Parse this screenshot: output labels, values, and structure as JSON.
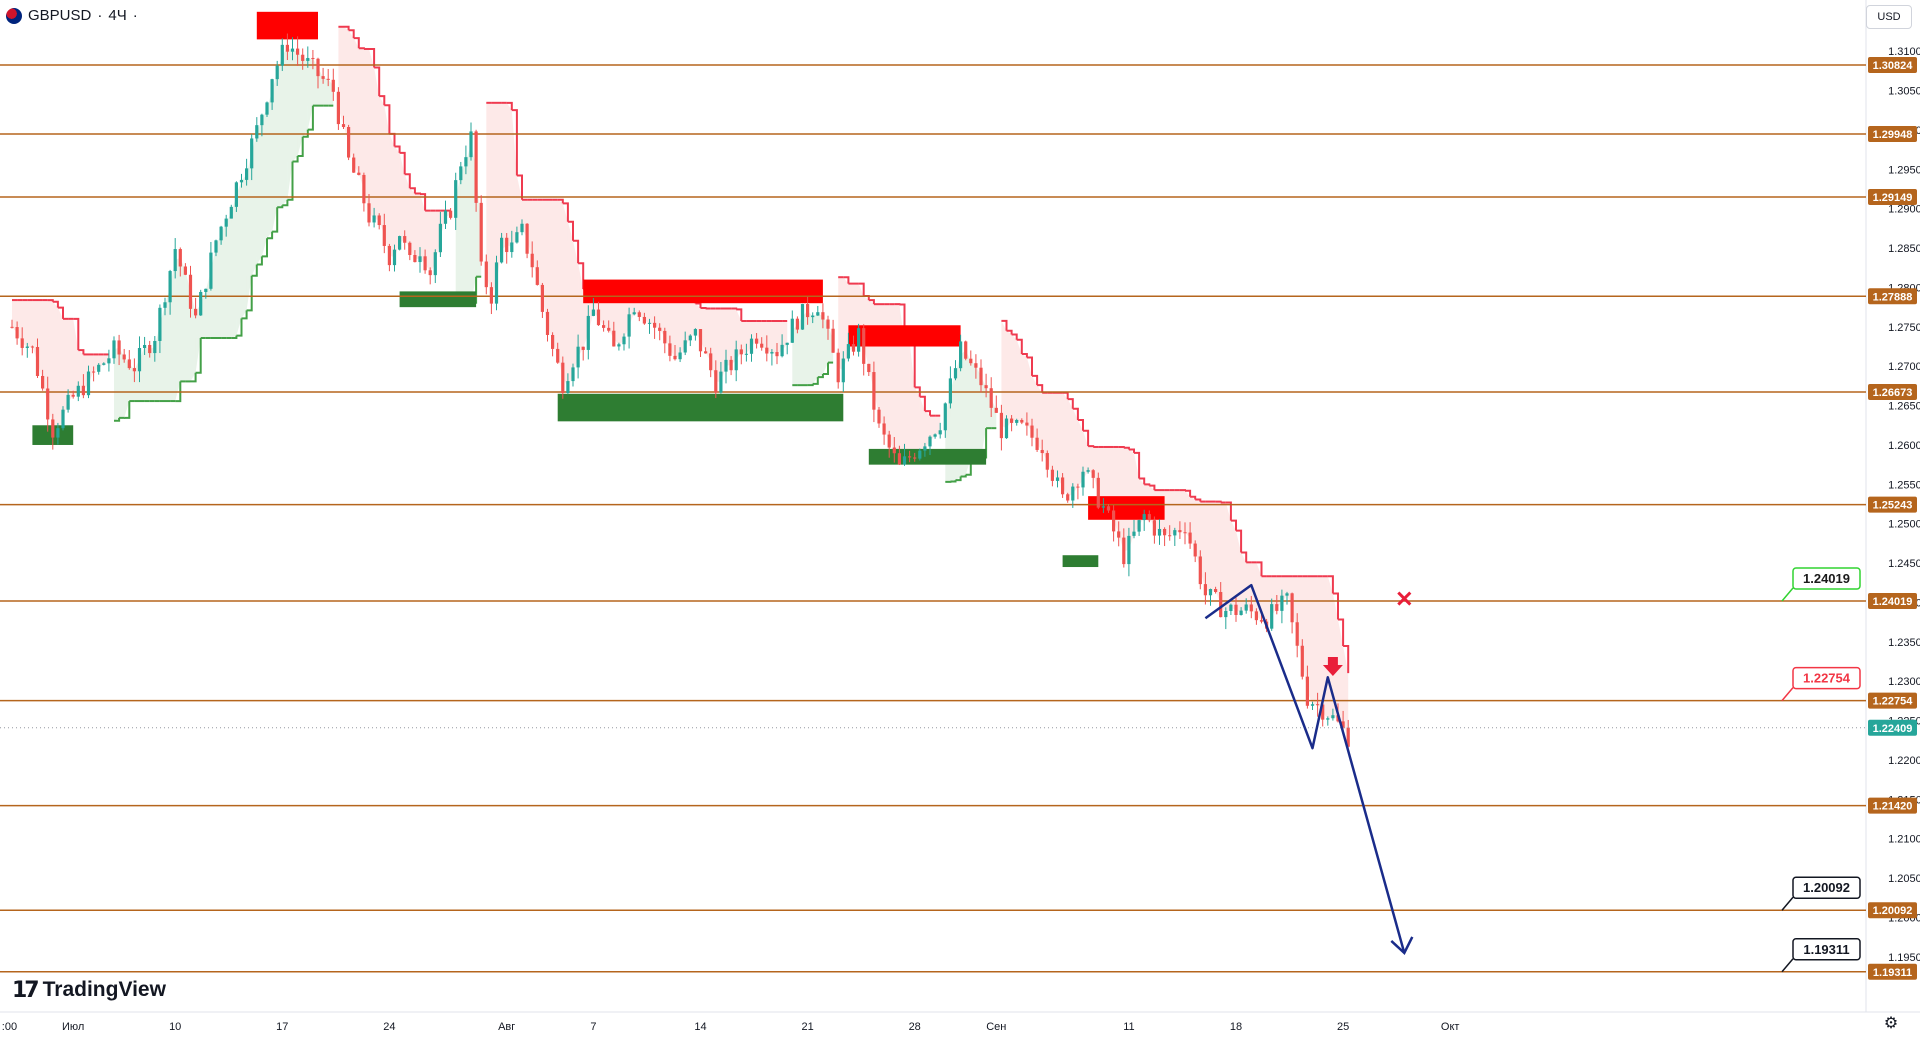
{
  "header": {
    "symbol": "GBPUSD",
    "interval": "4Ч",
    "separator": "·",
    "currency": "USD"
  },
  "brand": {
    "name": "TradingView"
  },
  "icons": {
    "flag": "gbp-usd-flag-icon",
    "settings": "gear-icon",
    "logo": "tradingview-logo-icon"
  },
  "colors": {
    "level_line": "#b5651d",
    "level_label_bg": "#b5651d",
    "bull_candle": "#26a69a",
    "bear_candle": "#ef5350",
    "support_zone": "#2e7d32",
    "resistance_zone": "#ff0000",
    "trail_down": "#ef3a4f",
    "trail_up": "#43a047",
    "projection": "#1a2c8a",
    "price_label_bg": "#26a69a"
  },
  "chart_data": {
    "type": "line",
    "title": "",
    "xlabel": "",
    "ylabel": "",
    "ylim": [
      1.188,
      1.3165
    ],
    "grid": false,
    "x_ticks": [
      {
        "label": ":00",
        "index": -2
      },
      {
        "label": "Июл",
        "index": 12
      },
      {
        "label": "10",
        "index": 32
      },
      {
        "label": "17",
        "index": 53
      },
      {
        "label": "24",
        "index": 74
      },
      {
        "label": "Авг",
        "index": 97
      },
      {
        "label": "7",
        "index": 114
      },
      {
        "label": "14",
        "index": 135
      },
      {
        "label": "21",
        "index": 156
      },
      {
        "label": "28",
        "index": 177
      },
      {
        "label": "Сен",
        "index": 193
      },
      {
        "label": "11",
        "index": 219
      },
      {
        "label": "18",
        "index": 240
      },
      {
        "label": "25",
        "index": 261
      },
      {
        "label": "Окт",
        "index": 282
      }
    ],
    "y_ticks": [
      1.31,
      1.305,
      1.3,
      1.295,
      1.29,
      1.285,
      1.28,
      1.275,
      1.27,
      1.265,
      1.26,
      1.255,
      1.25,
      1.245,
      1.24,
      1.235,
      1.23,
      1.225,
      1.22,
      1.215,
      1.21,
      1.205,
      1.2,
      1.195
    ],
    "y_tick_labels": [
      "1.31000",
      "1.30500",
      "1.30000",
      "1.29500",
      "1.29000",
      "1.28500",
      "1.28000",
      "1.27500",
      "1.27000",
      "1.26500",
      "1.26000",
      "1.25500",
      "1.25000",
      "1.24500",
      "1.24000",
      "1.23500",
      "1.23000",
      "1.22500",
      "1.22000",
      "1.21500",
      "1.21000",
      "1.20500",
      "1.20000",
      "1.19500"
    ],
    "horizontal_levels": [
      {
        "value": 1.30824,
        "label": "1.30824"
      },
      {
        "value": 1.29948,
        "label": "1.29948"
      },
      {
        "value": 1.29149,
        "label": "1.29149"
      },
      {
        "value": 1.27888,
        "label": "1.27888"
      },
      {
        "value": 1.26673,
        "label": "1.26673"
      },
      {
        "value": 1.25243,
        "label": "1.25243"
      },
      {
        "value": 1.24019,
        "label": "1.24019"
      },
      {
        "value": 1.22754,
        "label": "1.22754"
      },
      {
        "value": 1.2142,
        "label": "1.21420"
      },
      {
        "value": 1.20092,
        "label": "1.20092"
      },
      {
        "value": 1.19311,
        "label": "1.19311"
      }
    ],
    "current_price": {
      "value": 1.22409,
      "label": "1.22409"
    },
    "price_path": {
      "x": [
        0,
        4,
        8,
        12,
        16,
        20,
        24,
        28,
        32,
        36,
        40,
        44,
        48,
        51,
        54,
        57,
        60,
        63,
        66,
        68,
        70,
        72,
        74,
        76,
        78,
        80,
        82,
        84,
        86,
        88,
        90,
        92,
        94,
        96,
        98,
        100,
        102,
        104,
        106,
        108,
        110,
        112,
        114,
        118,
        122,
        126,
        130,
        134,
        138,
        142,
        146,
        150,
        154,
        158,
        162,
        166,
        170,
        174,
        178,
        182,
        186,
        190,
        194,
        198,
        202,
        206,
        210,
        214,
        218,
        222,
        226,
        230,
        234,
        238,
        242,
        246,
        250,
        254,
        258,
        262
      ],
      "y": [
        1.275,
        1.272,
        1.262,
        1.266,
        1.269,
        1.272,
        1.27,
        1.274,
        1.285,
        1.276,
        1.286,
        1.293,
        1.3,
        1.307,
        1.311,
        1.309,
        1.307,
        1.305,
        1.296,
        1.293,
        1.289,
        1.287,
        1.284,
        1.287,
        1.283,
        1.285,
        1.282,
        1.287,
        1.29,
        1.296,
        1.299,
        1.282,
        1.279,
        1.286,
        1.285,
        1.287,
        1.283,
        1.277,
        1.272,
        1.268,
        1.271,
        1.273,
        1.277,
        1.272,
        1.278,
        1.275,
        1.271,
        1.274,
        1.268,
        1.271,
        1.274,
        1.272,
        1.276,
        1.278,
        1.269,
        1.274,
        1.262,
        1.257,
        1.26,
        1.263,
        1.272,
        1.268,
        1.262,
        1.262,
        1.26,
        1.253,
        1.257,
        1.252,
        1.246,
        1.251,
        1.248,
        1.25,
        1.241,
        1.239,
        1.239,
        1.238,
        1.24,
        1.228,
        1.226,
        1.223
      ]
    },
    "support_zones": [
      {
        "x0": 4,
        "x1": 12,
        "y0": 1.26,
        "y1": 1.2625
      },
      {
        "x0": 76,
        "x1": 91,
        "y0": 1.2775,
        "y1": 1.2795
      },
      {
        "x0": 107,
        "x1": 163,
        "y0": 1.263,
        "y1": 1.2665
      },
      {
        "x0": 168,
        "x1": 191,
        "y0": 1.2575,
        "y1": 1.2595
      },
      {
        "x0": 206,
        "x1": 213,
        "y0": 1.2445,
        "y1": 1.246
      }
    ],
    "resistance_zones": [
      {
        "x0": 48,
        "x1": 60,
        "y0": 1.3115,
        "y1": 1.315
      },
      {
        "x0": 112,
        "x1": 159,
        "y0": 1.278,
        "y1": 1.281
      },
      {
        "x0": 164,
        "x1": 186,
        "y0": 1.2725,
        "y1": 1.2752
      },
      {
        "x0": 211,
        "x1": 226,
        "y0": 1.2505,
        "y1": 1.2535
      }
    ],
    "projection": {
      "x": [
        234,
        243,
        255,
        258,
        273
      ],
      "y": [
        1.238,
        1.2422,
        1.2215,
        1.2305,
        1.1955
      ]
    },
    "target_labels": [
      {
        "text": "1.24019",
        "value": 1.24019,
        "style": "green"
      },
      {
        "text": "1.22754",
        "value": 1.22754,
        "style": "red"
      },
      {
        "text": "1.20092",
        "value": 1.20092,
        "style": "black"
      },
      {
        "text": "1.19311",
        "value": 1.19311,
        "style": "black"
      }
    ],
    "markers": [
      {
        "type": "cross",
        "x": 273,
        "value": 1.2405
      },
      {
        "type": "down-arrow",
        "x": 259,
        "value": 1.2318
      }
    ]
  }
}
